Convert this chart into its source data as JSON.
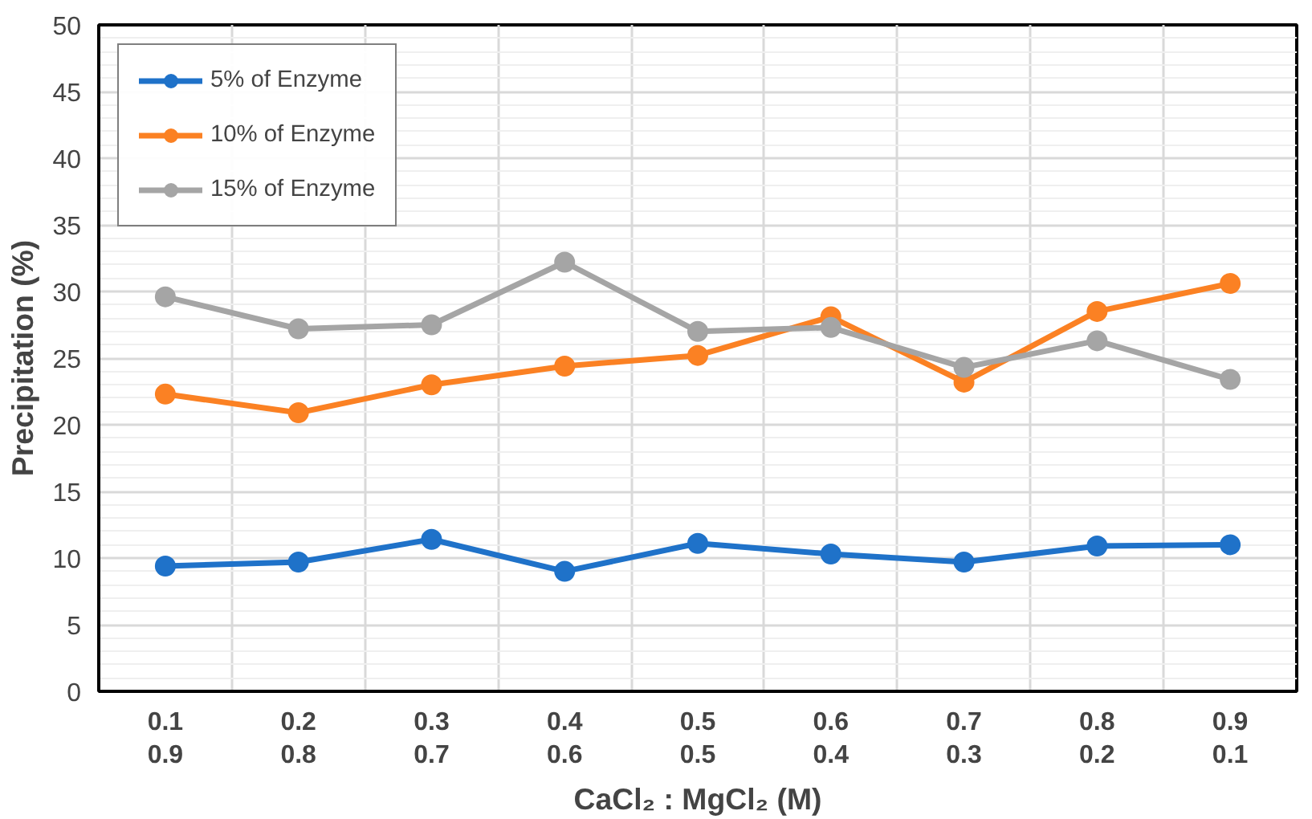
{
  "chart_data": {
    "type": "line",
    "xlabel": "CaCl₂ : MgCl₂ (M)",
    "ylabel": "Precipitation (%)",
    "categories": [
      "0.1\n0.9",
      "0.2\n0.8",
      "0.3\n0.7",
      "0.4\n0.6",
      "0.5\n0.5",
      "0.6\n0.4",
      "0.7\n0.3",
      "0.8\n0.2",
      "0.9\n0.1"
    ],
    "series": [
      {
        "name": "5% of Enzyme",
        "color": "#1f72c9",
        "values": [
          9.4,
          9.7,
          11.4,
          9.0,
          11.1,
          10.3,
          9.7,
          10.9,
          11.0
        ]
      },
      {
        "name": "10% of Enzyme",
        "color": "#fb8123",
        "values": [
          22.3,
          20.9,
          23.0,
          24.4,
          25.2,
          28.1,
          23.2,
          28.5,
          30.6
        ]
      },
      {
        "name": "15% of Enzyme",
        "color": "#a5a5a5",
        "values": [
          29.6,
          27.2,
          27.5,
          32.2,
          27.0,
          27.3,
          24.3,
          26.3,
          23.4
        ]
      }
    ],
    "ylim": [
      0,
      50
    ],
    "yticks": [
      0,
      5,
      10,
      15,
      20,
      25,
      30,
      35,
      40,
      45,
      50
    ],
    "grid": true,
    "legend": "top left",
    "marker": "circle",
    "line_style": "solid"
  }
}
